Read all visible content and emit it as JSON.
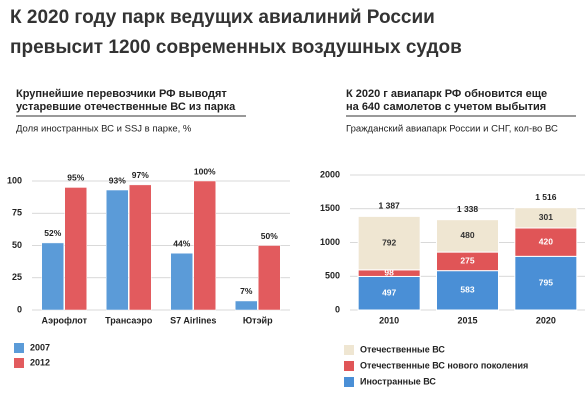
{
  "header": {
    "title": [
      "К 2020 году парк ведущих авиалиний России",
      "превысит 1200 современных воздушных судов"
    ]
  },
  "chart_data": [
    {
      "type": "bar",
      "title": [
        "Крупнейшие перевозчики РФ выводят",
        "устаревшие отечественные ВС из парка"
      ],
      "subtitle": "Доля иностранных ВС и SSJ в парке, %",
      "categories": [
        "Аэрофлот",
        "Трансаэро",
        "S7 Airlines",
        "Ютэйр"
      ],
      "series": [
        {
          "name": "2007",
          "color": "#5b9bd8",
          "values": [
            52,
            93,
            44,
            7
          ],
          "value_labels": [
            "52%",
            "93%",
            "44%",
            "7%"
          ]
        },
        {
          "name": "2012",
          "color": "#e25b5e",
          "values": [
            95,
            97,
            100,
            50
          ],
          "value_labels": [
            "95%",
            "97%",
            "100%",
            "50%"
          ]
        }
      ],
      "ylim": [
        0,
        100
      ],
      "yticks": [
        0,
        25,
        50,
        75,
        100
      ],
      "grid": true,
      "legend": "bottom"
    },
    {
      "type": "stacked_bar",
      "title": [
        "К 2020 г авиапарк РФ обновится еще",
        "на 640 самолетов с учетом выбытия"
      ],
      "subtitle": "Гражданский авиапарк России и СНГ, кол-во ВС",
      "categories": [
        "2010",
        "2015",
        "2020"
      ],
      "series": [
        {
          "name": "Иностранные ВС",
          "color": "#4a8fd6",
          "values": [
            497,
            583,
            795
          ]
        },
        {
          "name": "Отечественные ВС нового поколения",
          "color": "#e05557",
          "values": [
            98,
            275,
            420
          ]
        },
        {
          "name": "Отечественные ВС",
          "color": "#efe6d2",
          "values": [
            792,
            480,
            301
          ]
        }
      ],
      "totals": {
        "values": [
          1387,
          1338,
          1516
        ],
        "value_labels": [
          "1 387",
          "1 338",
          "1 516"
        ]
      },
      "ylim": [
        0,
        2000
      ],
      "yticks": [
        0,
        500,
        1000,
        1500,
        2000
      ],
      "grid": true,
      "legend": "bottom"
    }
  ]
}
